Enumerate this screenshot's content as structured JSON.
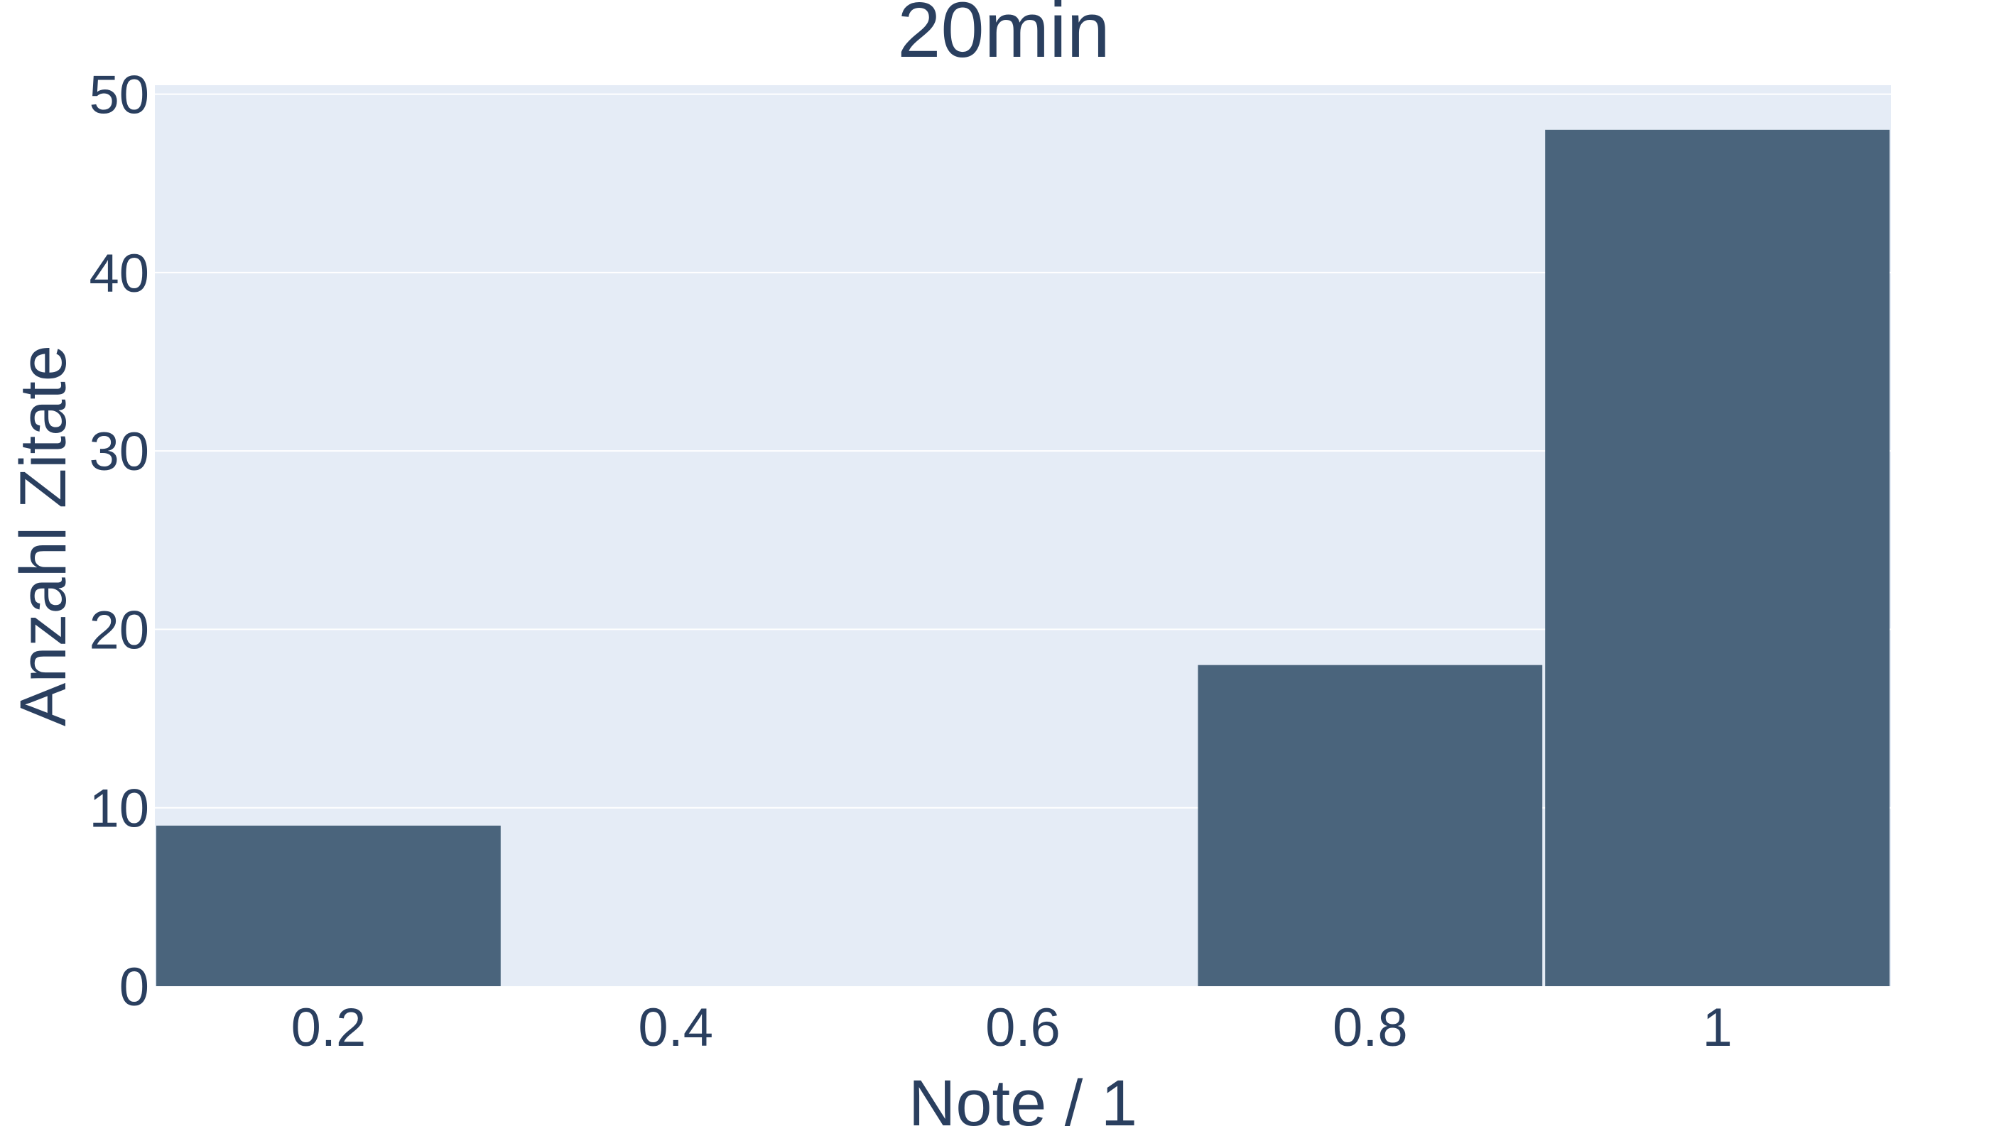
{
  "chart_data": {
    "type": "bar",
    "title": "20min",
    "xlabel": "Note / 1",
    "ylabel": "Anzahl Zitate",
    "bins": [
      {
        "x0": 0.1,
        "x1": 0.3,
        "value": 9
      },
      {
        "x0": 0.3,
        "x1": 0.5,
        "value": 0
      },
      {
        "x0": 0.5,
        "x1": 0.7,
        "value": 0
      },
      {
        "x0": 0.7,
        "x1": 0.9,
        "value": 18
      },
      {
        "x0": 0.9,
        "x1": 1.1,
        "value": 48
      }
    ],
    "xlim": [
      0.1,
      1.1
    ],
    "ylim": [
      0,
      50.5
    ],
    "x_ticks": [
      0.2,
      0.4,
      0.6,
      0.8,
      1
    ],
    "x_tick_labels": [
      "0.2",
      "0.4",
      "0.6",
      "0.8",
      "1"
    ],
    "y_ticks": [
      0,
      10,
      20,
      30,
      40,
      50
    ],
    "y_tick_labels": [
      "0",
      "10",
      "20",
      "30",
      "40",
      "50"
    ],
    "grid": true,
    "colors": {
      "bar": "#4a647c",
      "plot_background": "#e5ecf6",
      "grid": "#ffffff",
      "text": "#2a3f5f"
    }
  }
}
